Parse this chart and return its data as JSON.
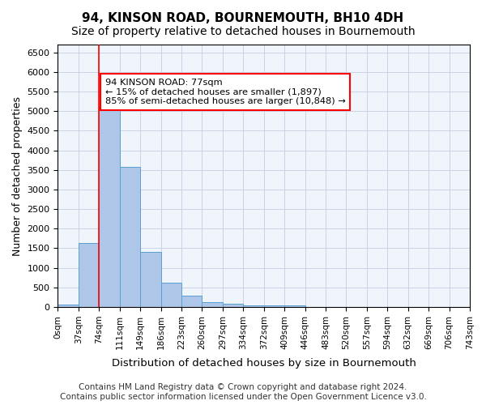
{
  "title": "94, KINSON ROAD, BOURNEMOUTH, BH10 4DH",
  "subtitle": "Size of property relative to detached houses in Bournemouth",
  "xlabel": "Distribution of detached houses by size in Bournemouth",
  "ylabel": "Number of detached properties",
  "bar_values": [
    70,
    1630,
    5100,
    3580,
    1400,
    620,
    300,
    130,
    80,
    50,
    50,
    50,
    0,
    0,
    0,
    0,
    0,
    0,
    0,
    0
  ],
  "bin_labels": [
    "0sqm",
    "37sqm",
    "74sqm",
    "111sqm",
    "149sqm",
    "186sqm",
    "223sqm",
    "260sqm",
    "297sqm",
    "334sqm",
    "372sqm",
    "409sqm",
    "446sqm",
    "483sqm",
    "520sqm",
    "557sqm",
    "594sqm",
    "632sqm",
    "669sqm",
    "706sqm",
    "743sqm"
  ],
  "bar_color": "#aec6e8",
  "bar_edge_color": "#5a9fd4",
  "property_line_x": 2,
  "property_line_label": "94 KINSON ROAD: 77sqm",
  "annotation_text": "94 KINSON ROAD: 77sqm\n← 15% of detached houses are smaller (1,897)\n85% of semi-detached houses are larger (10,848) →",
  "annotation_box_color": "white",
  "annotation_box_edge_color": "red",
  "ylim": [
    0,
    6700
  ],
  "yticks": [
    0,
    500,
    1000,
    1500,
    2000,
    2500,
    3000,
    3500,
    4000,
    4500,
    5000,
    5500,
    6000,
    6500
  ],
  "footer_text": "Contains HM Land Registry data © Crown copyright and database right 2024.\nContains public sector information licensed under the Open Government Licence v3.0.",
  "bg_color": "#f0f4fb",
  "grid_color": "#c8d4e8",
  "title_fontsize": 11,
  "subtitle_fontsize": 10,
  "axis_label_fontsize": 9,
  "tick_fontsize": 8,
  "footer_fontsize": 7.5
}
